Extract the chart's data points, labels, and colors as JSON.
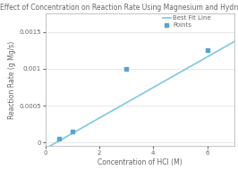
{
  "title": "Effect of Concentration on Reaction Rate Using Magnesium and Hydrochloric Acid",
  "xlabel": "Concentration of HCl (M)",
  "ylabel": "Reaction Rate (g Mg/s)",
  "points_x": [
    0.5,
    1.0,
    3.0,
    6.0
  ],
  "points_y": [
    5e-05,
    0.00015,
    0.001,
    0.00125
  ],
  "line_slope": 0.000208,
  "line_intercept": -8.5e-05,
  "point_color": "#5ba3d0",
  "line_color": "#7ec8e3",
  "xlim": [
    0,
    7
  ],
  "ylim": [
    -5e-05,
    0.00175
  ],
  "yticks": [
    0,
    0.0005,
    0.001,
    0.0015
  ],
  "ytick_labels": [
    "0",
    "0.0005",
    "0.001",
    "0.0015"
  ],
  "xticks": [
    0,
    2,
    4,
    6
  ],
  "xtick_labels": [
    "0",
    "2",
    "4",
    "6"
  ],
  "legend_points": "Points",
  "legend_line": "Best Fit Line",
  "title_fontsize": 5.5,
  "label_fontsize": 5.5,
  "tick_fontsize": 5.0,
  "legend_fontsize": 5.0,
  "text_color": "#666666",
  "spine_color": "#aaaaaa",
  "grid_color": "#e0e0e0"
}
